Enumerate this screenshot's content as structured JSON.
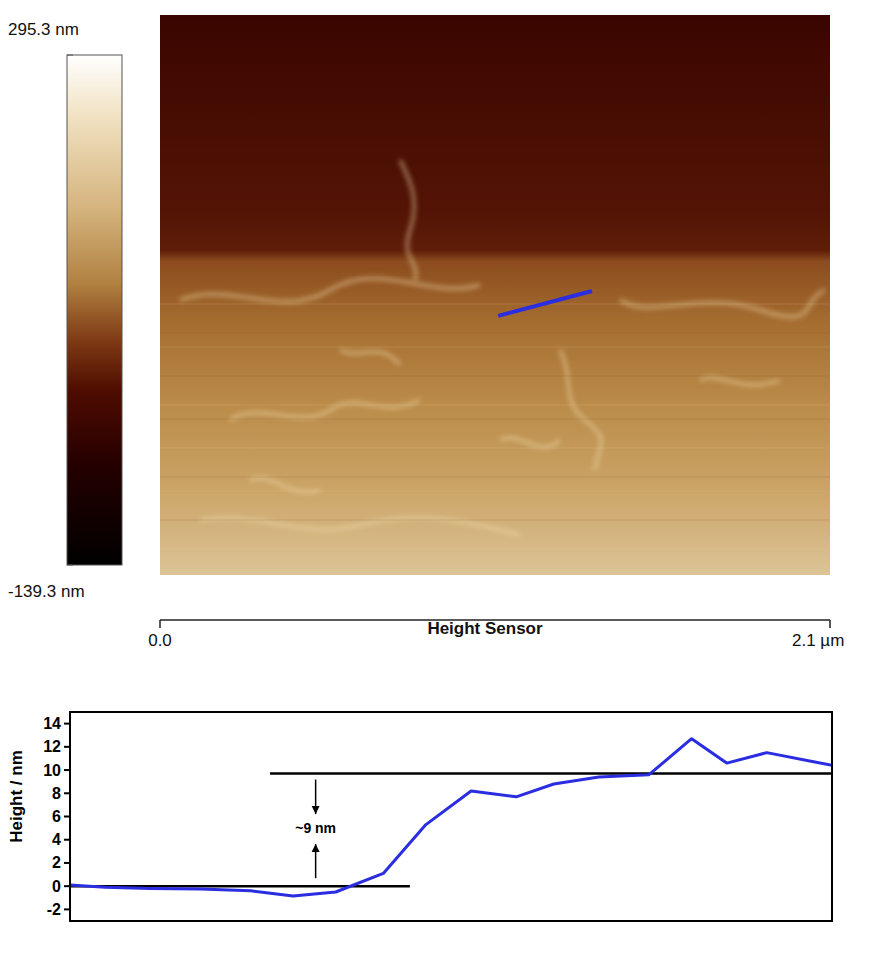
{
  "chart_data": [
    {
      "type": "image",
      "title": "Height Sensor",
      "xlim": [
        0,
        2.1
      ],
      "xticks": [
        {
          "value": 0,
          "label": "0.0"
        },
        {
          "value": 2.1,
          "label": "2.1 µm"
        }
      ],
      "colorbar": {
        "range": [
          -139.3,
          295.3
        ],
        "ticks": [
          {
            "value": 295.3,
            "label": "295.3 nm"
          },
          {
            "value": -139.3,
            "label": "-139.3 nm"
          }
        ]
      },
      "profile_line": {
        "x": [
          1.06,
          1.354
        ],
        "y": [
          0.943,
          0.865
        ],
        "color": "#2a2ee0"
      }
    },
    {
      "type": "line",
      "ylabel": "Height / nm",
      "x": [
        0,
        0.014,
        0.032,
        0.052,
        0.072,
        0.089,
        0.106,
        0.125,
        0.142,
        0.16,
        0.178,
        0.193,
        0.211,
        0.231,
        0.248,
        0.262,
        0.278,
        0.304
      ],
      "values": [
        0.1,
        -0.1,
        -0.2,
        -0.25,
        -0.4,
        -0.85,
        -0.5,
        1.1,
        5.3,
        8.2,
        7.7,
        8.8,
        9.4,
        9.6,
        12.7,
        10.6,
        11.5,
        10.4
      ],
      "color": "#2a2ee0",
      "xlim": [
        0,
        0.304
      ],
      "ylim": [
        -3,
        15
      ],
      "yticks": [
        -2,
        0,
        2,
        4,
        6,
        8,
        10,
        12,
        14
      ],
      "tick_labels": "y",
      "reference_lines": [
        {
          "y": 9.7,
          "x": [
            0.0798,
            0.304
          ]
        },
        {
          "y": 0,
          "x": [
            0,
            0.1356
          ]
        }
      ],
      "annotations": [
        {
          "text": "~9 nm",
          "x": 0.098,
          "y": 5
        }
      ]
    }
  ]
}
